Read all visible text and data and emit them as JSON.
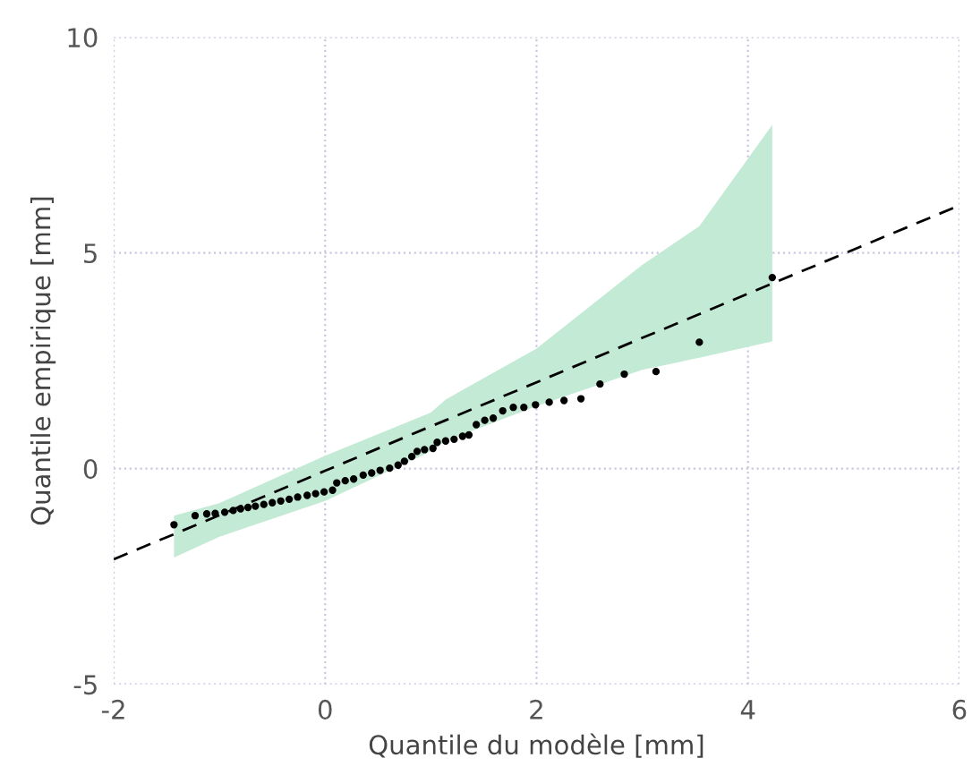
{
  "chart_data": {
    "type": "scatter",
    "xlabel": "Quantile du modèle [mm]",
    "ylabel": "Quantile empirique [mm]",
    "xlim": [
      -2,
      6
    ],
    "ylim": [
      -5,
      10
    ],
    "xticks": [
      -2,
      0,
      2,
      4,
      6
    ],
    "yticks": [
      -5,
      0,
      5,
      10
    ],
    "grid": true,
    "legend": false,
    "series": [
      {
        "type": "line",
        "color": "#000000",
        "line_style": "dashed",
        "marker": "none",
        "x": [
          -2,
          -1.43,
          -1.0,
          0,
          1.0,
          1.14,
          2,
          3,
          3.54,
          4.23,
          6
        ],
        "values": [
          -2.1,
          -1.52,
          -1.08,
          -0.05,
          0.98,
          1.12,
          2.0,
          3.03,
          3.58,
          4.29,
          6.1
        ],
        "lower": [
          null,
          -2.06,
          -1.58,
          -0.75,
          0.4,
          0.64,
          1.45,
          2.29,
          2.57,
          2.95,
          null
        ],
        "upper": [
          null,
          -1.09,
          -0.8,
          0.3,
          1.3,
          1.6,
          2.78,
          4.72,
          5.62,
          7.97,
          null
        ]
      },
      {
        "color": "#000000",
        "marker": "circle",
        "x": [
          -1.43,
          -1.23,
          -1.12,
          -1.04,
          -0.95,
          -0.87,
          -0.8,
          -0.73,
          -0.66,
          -0.58,
          -0.5,
          -0.42,
          -0.34,
          -0.26,
          -0.17,
          -0.09,
          -0.01,
          0.07,
          0.11,
          0.19,
          0.27,
          0.36,
          0.44,
          0.52,
          0.61,
          0.69,
          0.75,
          0.82,
          0.87,
          0.94,
          1.02,
          1.06,
          1.14,
          1.22,
          1.3,
          1.36,
          1.43,
          1.51,
          1.59,
          1.68,
          1.78,
          1.88,
          1.99,
          2.12,
          2.26,
          2.42,
          2.6,
          2.83,
          3.13,
          3.54,
          4.23
        ],
        "values": [
          -1.3,
          -1.09,
          -1.05,
          -1.04,
          -1.01,
          -0.97,
          -0.93,
          -0.9,
          -0.87,
          -0.83,
          -0.79,
          -0.75,
          -0.71,
          -0.66,
          -0.62,
          -0.58,
          -0.54,
          -0.5,
          -0.33,
          -0.28,
          -0.24,
          -0.15,
          -0.1,
          -0.04,
          0.01,
          0.08,
          0.17,
          0.28,
          0.4,
          0.44,
          0.47,
          0.61,
          0.64,
          0.68,
          0.75,
          0.78,
          1.02,
          1.12,
          1.17,
          1.34,
          1.42,
          1.42,
          1.48,
          1.54,
          1.58,
          1.62,
          1.96,
          2.19,
          2.25,
          2.93,
          4.43
        ]
      }
    ]
  }
}
